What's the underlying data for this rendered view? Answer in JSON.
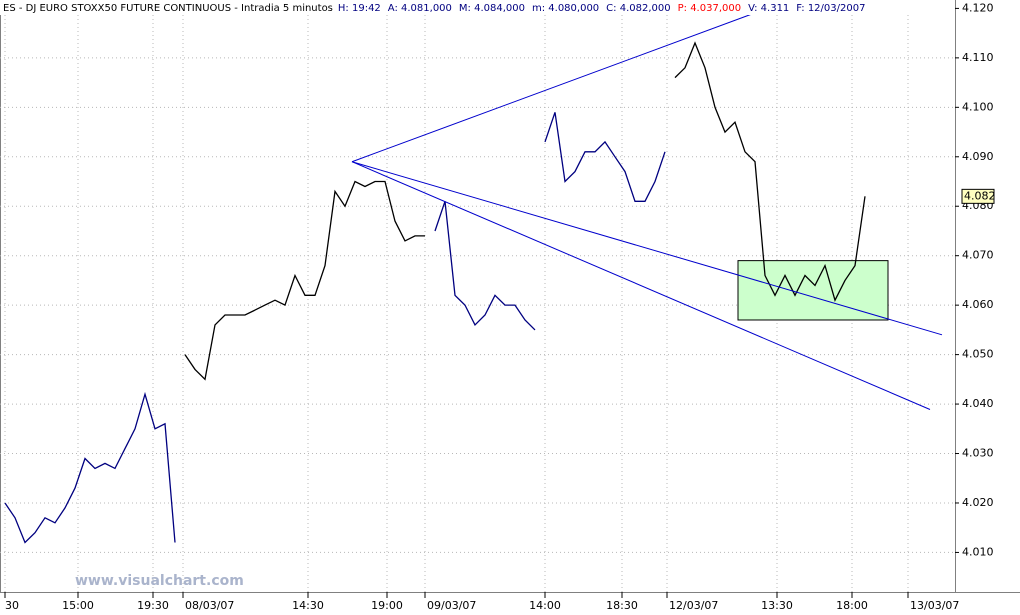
{
  "chart_data": {
    "type": "line",
    "header": [
      {
        "text": "ES - DJ EURO STOXX50 FUTURE CONTINUOUS - Intradia 5 minutos",
        "color": "#000000"
      },
      {
        "text": "H: 19:42",
        "color": "#000080"
      },
      {
        "text": "A: 4.081,000",
        "color": "#000080"
      },
      {
        "text": "M: 4.084,000",
        "color": "#000080"
      },
      {
        "text": "m: 4.080,000",
        "color": "#000080"
      },
      {
        "text": "C: 4.082,000",
        "color": "#000080"
      },
      {
        "text": "P: 4.037,000",
        "color": "#ff0000"
      },
      {
        "text": "V: 4.311",
        "color": "#000080"
      },
      {
        "text": "F: 12/03/2007",
        "color": "#000080"
      }
    ],
    "watermark": "www.visualchart.com",
    "xlim": [
      0,
      95
    ],
    "xticks": [
      {
        "value": 0,
        "label": "30"
      },
      {
        "value": 7.3,
        "label": "15:00"
      },
      {
        "value": 14.8,
        "label": "19:30"
      },
      {
        "value": 17.8,
        "label": "08/03/07"
      },
      {
        "value": 30.3,
        "label": "14:30"
      },
      {
        "value": 38.2,
        "label": "19:00"
      },
      {
        "value": 42,
        "label": "09/03/07"
      },
      {
        "value": 54,
        "label": "14:00"
      },
      {
        "value": 61.7,
        "label": "18:30"
      },
      {
        "value": 66.2,
        "label": "12/03/07"
      },
      {
        "value": 77.2,
        "label": "13:30"
      },
      {
        "value": 84.7,
        "label": "18:00"
      },
      {
        "value": 90.3,
        "label": "13/03/07"
      }
    ],
    "ylim": [
      4.002,
      4.1217
    ],
    "yticks": [
      {
        "value": 4.01,
        "label": "4.010"
      },
      {
        "value": 4.02,
        "label": "4.020"
      },
      {
        "value": 4.03,
        "label": "4.030"
      },
      {
        "value": 4.04,
        "label": "4.040"
      },
      {
        "value": 4.05,
        "label": "4.050"
      },
      {
        "value": 4.06,
        "label": "4.060"
      },
      {
        "value": 4.07,
        "label": "4.070"
      },
      {
        "value": 4.08,
        "label": "4.080"
      },
      {
        "value": 4.09,
        "label": "4.090"
      },
      {
        "value": 4.1,
        "label": "4.100"
      },
      {
        "value": 4.11,
        "label": "4.110"
      },
      {
        "value": 4.12,
        "label": "4.120"
      }
    ],
    "grid": true,
    "last_value": 4.082,
    "series": [
      {
        "color": "#000080",
        "x": [
          0,
          1,
          2,
          3,
          4,
          5,
          6,
          7,
          8,
          9,
          10,
          11,
          12,
          13,
          14,
          15,
          16,
          17
        ],
        "values": [
          4.02,
          4.017,
          4.012,
          4.014,
          4.017,
          4.016,
          4.019,
          4.023,
          4.029,
          4.027,
          4.028,
          4.027,
          4.031,
          4.035,
          4.042,
          4.035,
          4.036,
          4.012
        ]
      },
      {
        "color": "#000000",
        "x": [
          18,
          19,
          20,
          21,
          22,
          23,
          24,
          25,
          26,
          27,
          28,
          29,
          30,
          31,
          32,
          33,
          34,
          35,
          36,
          37,
          38,
          39,
          40,
          41,
          42
        ],
        "values": [
          4.05,
          4.047,
          4.045,
          4.056,
          4.058,
          4.058,
          4.058,
          4.059,
          4.06,
          4.061,
          4.06,
          4.066,
          4.062,
          4.062,
          4.068,
          4.083,
          4.08,
          4.085,
          4.084,
          4.085,
          4.085,
          4.077,
          4.073,
          4.074,
          4.074
        ]
      },
      {
        "color": "#000080",
        "x": [
          43,
          44,
          45,
          46,
          47,
          48,
          49,
          50,
          51,
          52,
          53
        ],
        "values": [
          4.075,
          4.081,
          4.062,
          4.06,
          4.056,
          4.058,
          4.062,
          4.06,
          4.06,
          4.057,
          4.055
        ]
      },
      {
        "color": "#000080",
        "x": [
          54,
          55,
          56,
          57,
          58,
          59,
          60,
          61,
          62,
          63,
          64,
          65,
          66
        ],
        "values": [
          4.093,
          4.099,
          4.085,
          4.087,
          4.091,
          4.091,
          4.093,
          4.09,
          4.087,
          4.081,
          4.081,
          4.085,
          4.091
        ]
      },
      {
        "color": "#000000",
        "x": [
          67,
          68,
          69,
          70,
          71,
          72,
          73,
          74,
          75,
          76,
          77,
          78,
          79,
          80,
          81,
          82,
          83,
          84,
          85,
          86
        ],
        "values": [
          4.106,
          4.108,
          4.113,
          4.108,
          4.1,
          4.095,
          4.097,
          4.091,
          4.089,
          4.066,
          4.062,
          4.066,
          4.062,
          4.066,
          4.064,
          4.068,
          4.061,
          4.065,
          4.068,
          4.082
        ]
      }
    ],
    "trendlines": [
      {
        "color": "#0000cc",
        "x": [
          34.7,
          78.5
        ],
        "y": [
          4.089,
          4.1217
        ]
      },
      {
        "color": "#0000cc",
        "x": [
          34.7,
          93.7
        ],
        "y": [
          4.089,
          4.054
        ]
      },
      {
        "color": "#0000cc",
        "x": [
          34.7,
          92.5
        ],
        "y": [
          4.089,
          4.0389
        ]
      }
    ],
    "box": {
      "x": [
        73.3,
        88.3
      ],
      "y": [
        4.057,
        4.069
      ],
      "color": "#ccffcc"
    }
  }
}
